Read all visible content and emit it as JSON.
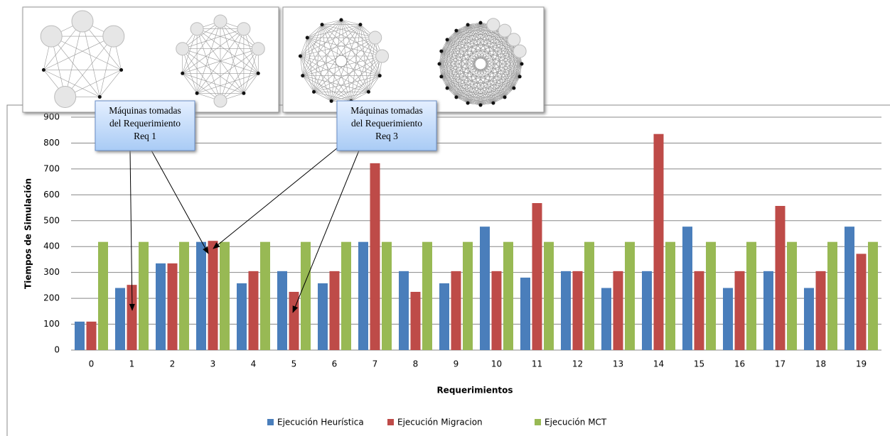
{
  "chart_data": {
    "type": "bar",
    "ylabel": "Tiempos de Simulación",
    "xlabel": "Requerimientos",
    "categories": [
      "0",
      "1",
      "2",
      "3",
      "4",
      "5",
      "6",
      "7",
      "8",
      "9",
      "10",
      "11",
      "12",
      "13",
      "14",
      "15",
      "16",
      "17",
      "18",
      "19"
    ],
    "series": [
      {
        "name": "Ejecución Heurística",
        "color": "#4a7ebb",
        "values": [
          110,
          240,
          335,
          418,
          258,
          305,
          258,
          418,
          305,
          258,
          477,
          280,
          305,
          240,
          305,
          477,
          240,
          305,
          240,
          477
        ]
      },
      {
        "name": "Ejecución Migracion",
        "color": "#be4b48",
        "values": [
          110,
          252,
          335,
          422,
          305,
          225,
          305,
          722,
          225,
          305,
          305,
          568,
          305,
          305,
          835,
          305,
          305,
          557,
          305,
          372
        ]
      },
      {
        "name": "Ejecución MCT",
        "color": "#98b954",
        "values": [
          418,
          418,
          418,
          418,
          418,
          418,
          418,
          418,
          418,
          418,
          418,
          418,
          418,
          418,
          418,
          418,
          418,
          418,
          418,
          418
        ]
      }
    ],
    "ylim": [
      0,
      900
    ],
    "yticks": [
      0,
      100,
      200,
      300,
      400,
      500,
      600,
      700,
      800,
      900
    ],
    "grid": true,
    "legend": "bottom",
    "annotations": [
      {
        "lines": [
          "Máquinas tomadas",
          "del Requerimiento",
          "Req 1"
        ]
      },
      {
        "lines": [
          "Máquinas tomadas",
          "del Requerimiento",
          "Req 3"
        ]
      }
    ]
  }
}
